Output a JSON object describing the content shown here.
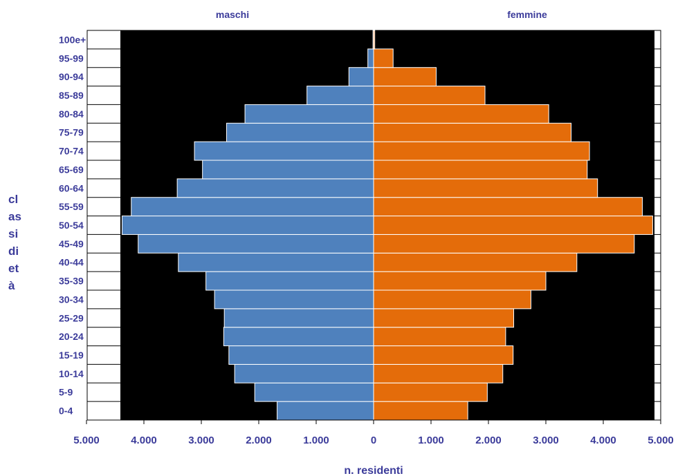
{
  "chart_data": {
    "type": "bar",
    "orientation": "horizontal",
    "layout": "population-pyramid",
    "xlabel": "n. residenti",
    "ylabel": "classi di età",
    "ylabel_lines": [
      "cl",
      "as",
      "si",
      "di",
      "et",
      "à"
    ],
    "xlim": [
      -5000,
      5000
    ],
    "x_ticks": [
      -5000,
      -4000,
      -3000,
      -2000,
      -1000,
      0,
      1000,
      2000,
      3000,
      4000,
      5000
    ],
    "x_tick_labels": [
      "5.000",
      "4.000",
      "3.000",
      "2.000",
      "1.000",
      "0",
      "1.000",
      "2.000",
      "3.000",
      "4.000",
      "5.000"
    ],
    "categories": [
      "0-4",
      "5-9",
      "10-14",
      "15-19",
      "20-24",
      "25-29",
      "30-34",
      "35-39",
      "40-44",
      "45-49",
      "50-54",
      "55-59",
      "60-64",
      "65-69",
      "70-74",
      "75-79",
      "80-84",
      "85-89",
      "90-94",
      "95-99",
      "100e+"
    ],
    "series": [
      {
        "name": "maschi",
        "color": "#4f81bd",
        "values": [
          1680,
          2070,
          2420,
          2520,
          2610,
          2600,
          2770,
          2920,
          3400,
          4100,
          4380,
          4220,
          3420,
          2980,
          3120,
          2560,
          2240,
          1160,
          430,
          100,
          10
        ]
      },
      {
        "name": "femmine",
        "color": "#e46c0a",
        "values": [
          1640,
          1980,
          2250,
          2430,
          2300,
          2440,
          2740,
          3000,
          3540,
          4540,
          4860,
          4680,
          3900,
          3720,
          3760,
          3440,
          3050,
          1940,
          1090,
          340,
          20
        ]
      }
    ],
    "plot_background": "#000000",
    "page_background": "#ffffff",
    "label_color": "#3b3b9a",
    "grid": false
  }
}
